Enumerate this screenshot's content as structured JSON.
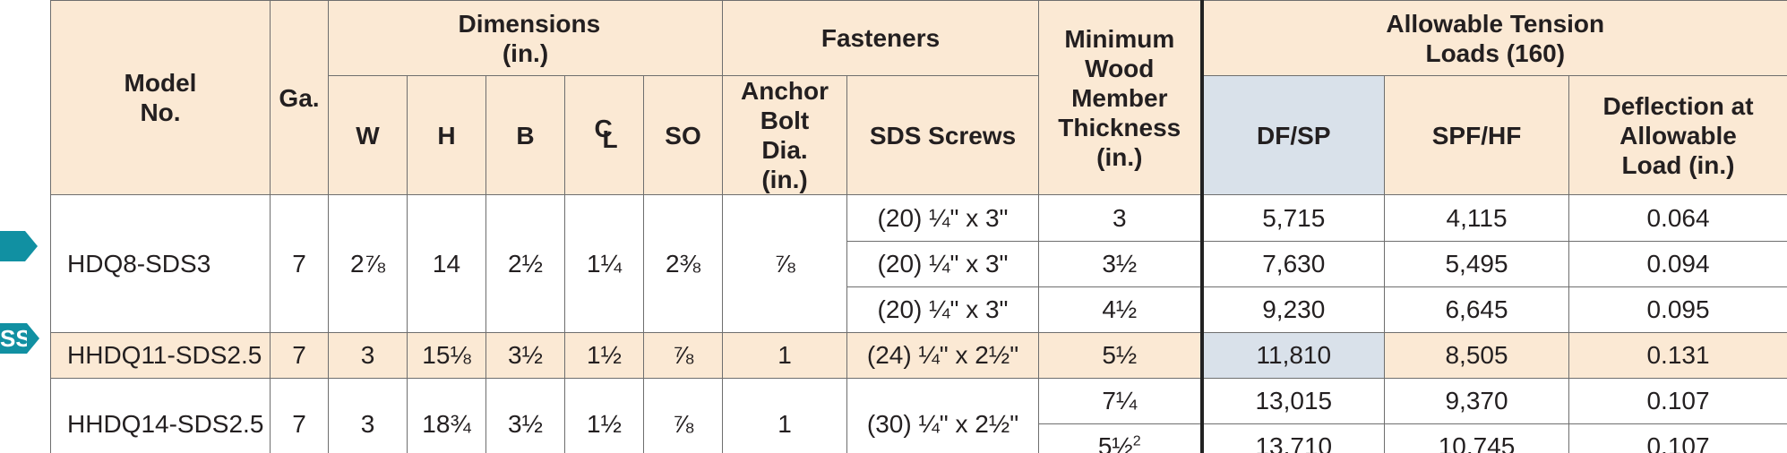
{
  "headers": {
    "model": "Model No.",
    "ga": "Ga.",
    "dimensions": "Dimensions (in.)",
    "w": "W",
    "h": "H",
    "b": "B",
    "cl_c": "C",
    "cl_l": "L",
    "so": "SO",
    "fasteners": "Fasteners",
    "anchor": "Anchor Bolt Dia. (in.)",
    "sds": "SDS Screws",
    "min_wood": "Minimum Wood Member Thickness (in.)",
    "allowable": "Allowable Tension Loads (160)",
    "dfsp": "DF/SP",
    "spfhf": "SPF/HF",
    "deflection": "Deflection at Allowable Load (in.)"
  },
  "groups": [
    {
      "model": "HDQ8-SDS3",
      "ga": "7",
      "w": "2⅞",
      "h": "14",
      "b": "2½",
      "cl": "1¼",
      "so": "2⅜",
      "anchor": "⅞",
      "rows": [
        {
          "sds": "(20) ¼\" x 3\"",
          "min_wood": "3",
          "dfsp": "5,715",
          "spfhf": "4,115",
          "deflection": "0.064"
        },
        {
          "sds": "(20) ¼\" x 3\"",
          "min_wood": "3½",
          "dfsp": "7,630",
          "spfhf": "5,495",
          "deflection": "0.094"
        },
        {
          "sds": "(20) ¼\" x 3\"",
          "min_wood": "4½",
          "dfsp": "9,230",
          "spfhf": "6,645",
          "deflection": "0.095"
        }
      ]
    },
    {
      "model": "HHDQ11-SDS2.5",
      "ga": "7",
      "w": "3",
      "h": "15⅛",
      "b": "3½",
      "cl": "1½",
      "so": "⅞",
      "anchor": "1",
      "sds": "(24) ¼\" x 2½\"",
      "min_wood": "5½",
      "dfsp": "11,810",
      "spfhf": "8,505",
      "deflection": "0.131"
    },
    {
      "model": "HHDQ14-SDS2.5",
      "ga": "7",
      "w": "3",
      "h": "18¾",
      "b": "3½",
      "cl": "1½",
      "so": "⅞",
      "anchor": "1",
      "sds": "(30) ¼\" x 2½\"",
      "rows": [
        {
          "min_wood": "7¼",
          "dfsp": "13,015",
          "spfhf": "9,370",
          "deflection": "0.107"
        },
        {
          "min_wood": "5½",
          "min_wood_sup": "2",
          "dfsp": "13,710",
          "spfhf": "10,745",
          "deflection": "0.107"
        }
      ]
    }
  ],
  "markers": {
    "ss_label": "SS"
  },
  "colors": {
    "header_bg": "#fbe9d4",
    "blue_cell": "#d9e1ea",
    "marker": "#1190a2",
    "border": "#6e6e6e"
  }
}
